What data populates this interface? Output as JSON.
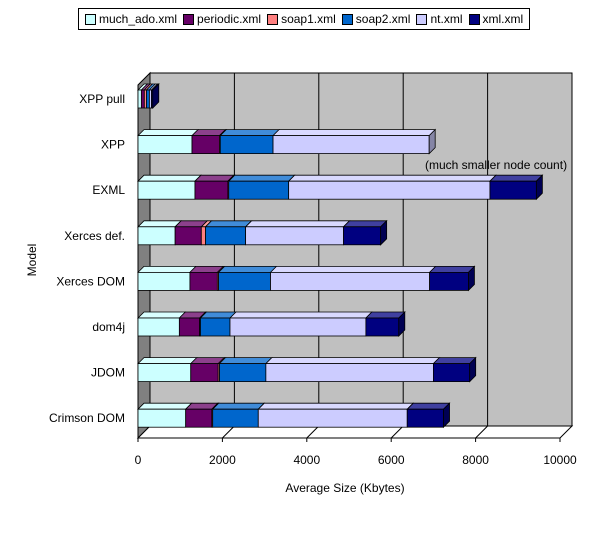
{
  "chart_data": {
    "type": "bar",
    "orientation": "horizontal",
    "stacked": true,
    "three_d": true,
    "ylabel": "Model",
    "xlabel": "Average Size (Kbytes)",
    "xlim": [
      0,
      10000
    ],
    "xticks": [
      0,
      2000,
      4000,
      6000,
      8000,
      10000
    ],
    "xtick_labels": [
      "0",
      "2000",
      "4000",
      "6000",
      "8000",
      "10000"
    ],
    "grid": "vertical",
    "legend_position": "top",
    "categories": [
      "XPP pull",
      "XPP",
      "EXML",
      "Xerces def.",
      "Xerces DOM",
      "dom4j",
      "JDOM",
      "Crimson DOM"
    ],
    "series": [
      {
        "name": "much_ado.xml",
        "color": "#ccffff",
        "values": [
          80,
          1280,
          1350,
          880,
          1230,
          980,
          1250,
          1130
        ]
      },
      {
        "name": "periodic.xml",
        "color": "#660066",
        "values": [
          70,
          650,
          780,
          620,
          650,
          480,
          650,
          620
        ]
      },
      {
        "name": "soap1.xml",
        "color": "#ff8080",
        "values": [
          50,
          20,
          20,
          100,
          30,
          20,
          30,
          20
        ]
      },
      {
        "name": "soap2.xml",
        "color": "#0066cc",
        "values": [
          70,
          1250,
          1420,
          950,
          1230,
          700,
          1100,
          1080
        ]
      },
      {
        "name": "nt.xml",
        "color": "#ccccff",
        "values": [
          50,
          3700,
          4770,
          2320,
          3770,
          3220,
          3970,
          3530
        ]
      },
      {
        "name": "xml.xml",
        "color": "#000080",
        "values": [
          30,
          0,
          1100,
          880,
          920,
          780,
          860,
          860
        ]
      }
    ],
    "annotations": [
      {
        "text": "(much smaller node count)",
        "target": "EXML"
      }
    ]
  }
}
